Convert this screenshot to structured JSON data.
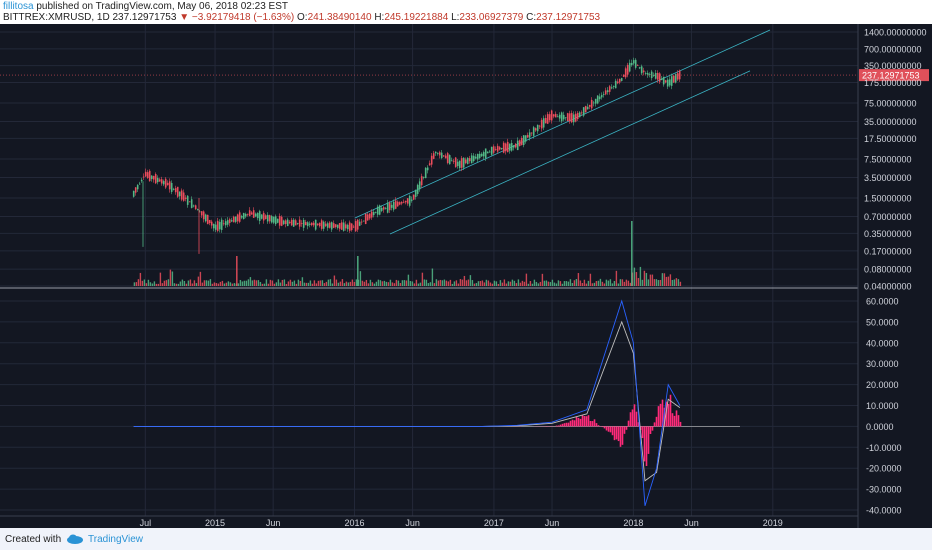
{
  "header": {
    "user": "fillitosa",
    "published": "published on TradingView.com, May 06, 2018 02:23 EST",
    "symbol": "BITTREX:XMRUSD, 1D",
    "last": "237.12971753",
    "change": "−3.92179418 (−1.63%)",
    "open_label": "O:",
    "open": "241.38490140",
    "high_label": "H:",
    "high": "245.19221884",
    "low_label": "L:",
    "low": "233.06927379",
    "close_label": "C:",
    "close": "237.12971753"
  },
  "footer": {
    "created": "Created with",
    "brand": "TradingView"
  },
  "colors": {
    "background": "#131722",
    "grid": "#232838",
    "up": "#53b987",
    "down": "#eb4d5c",
    "channel": "#3bb3c3",
    "price_tag": "#e0505a",
    "macd_line": "#2962ff",
    "signal_line": "#c0c0c0",
    "histogram": "#ff2a7a",
    "axis_text": "#d1d4dc"
  },
  "chart_data": [
    {
      "type": "line",
      "title": "BITTREX:XMRUSD, 1D",
      "scale": "log",
      "x_ticks": [
        "Jul",
        "2015",
        "Jun",
        "2016",
        "Jun",
        "2017",
        "Jun",
        "2018",
        "Jun",
        "2019"
      ],
      "x": [
        "2014-06",
        "2014-07",
        "2014-09",
        "2014-11",
        "2015-01",
        "2015-04",
        "2015-07",
        "2015-10",
        "2016-01",
        "2016-03",
        "2016-06",
        "2016-08",
        "2016-10",
        "2017-01",
        "2017-03",
        "2017-06",
        "2017-08",
        "2017-10",
        "2017-12",
        "2018-01",
        "2018-02",
        "2018-03",
        "2018-04",
        "2018-05"
      ],
      "values": [
        1.8,
        4.0,
        2.6,
        1.2,
        0.45,
        0.8,
        0.55,
        0.5,
        0.45,
        0.9,
        1.4,
        10.0,
        6.0,
        11.0,
        13.0,
        45.0,
        40.0,
        90.0,
        200.0,
        420.0,
        260.0,
        230.0,
        170.0,
        237.13
      ],
      "y_ticks": [
        "1400.00000000",
        "700.00000000",
        "350.00000000",
        "175.00000000",
        "75.00000000",
        "35.00000000",
        "17.50000000",
        "7.50000000",
        "3.50000000",
        "1.50000000",
        "0.70000000",
        "0.35000000",
        "0.17000000",
        "0.08000000",
        "0.04000000"
      ],
      "last_price": "237.12971753",
      "channel": "ascending parallel channel",
      "grid": true
    },
    {
      "type": "bar",
      "title": "",
      "x": [
        "2014-06",
        "2014-09",
        "2014-12",
        "2015-03",
        "2015-06",
        "2015-09",
        "2015-12",
        "2016-03",
        "2016-06",
        "2016-09",
        "2016-12",
        "2017-03",
        "2017-06",
        "2017-09",
        "2017-12",
        "2018-01",
        "2018-02",
        "2018-03",
        "2018-04",
        "2018-05"
      ],
      "values": [
        0,
        0,
        0,
        0,
        0,
        0,
        0,
        0,
        0,
        0,
        0,
        0.1,
        -0.2,
        5,
        -8,
        12,
        -15,
        8,
        14,
        2
      ],
      "macd_line": [
        0,
        0,
        0,
        0,
        0,
        0,
        0,
        0,
        0,
        0,
        0,
        0.5,
        2,
        8,
        60,
        40,
        -38,
        -20,
        20,
        10
      ],
      "signal_line": [
        0,
        0,
        0,
        0,
        0,
        0,
        0,
        0,
        0,
        0,
        0,
        0.3,
        1.5,
        6,
        50,
        35,
        -26,
        -22,
        13,
        9
      ],
      "y_ticks": [
        "60.0000",
        "50.0000",
        "40.0000",
        "30.0000",
        "20.0000",
        "10.0000",
        "0.0000",
        "-10.0000",
        "-20.0000",
        "-30.0000",
        "-40.0000"
      ],
      "grid": true
    }
  ]
}
